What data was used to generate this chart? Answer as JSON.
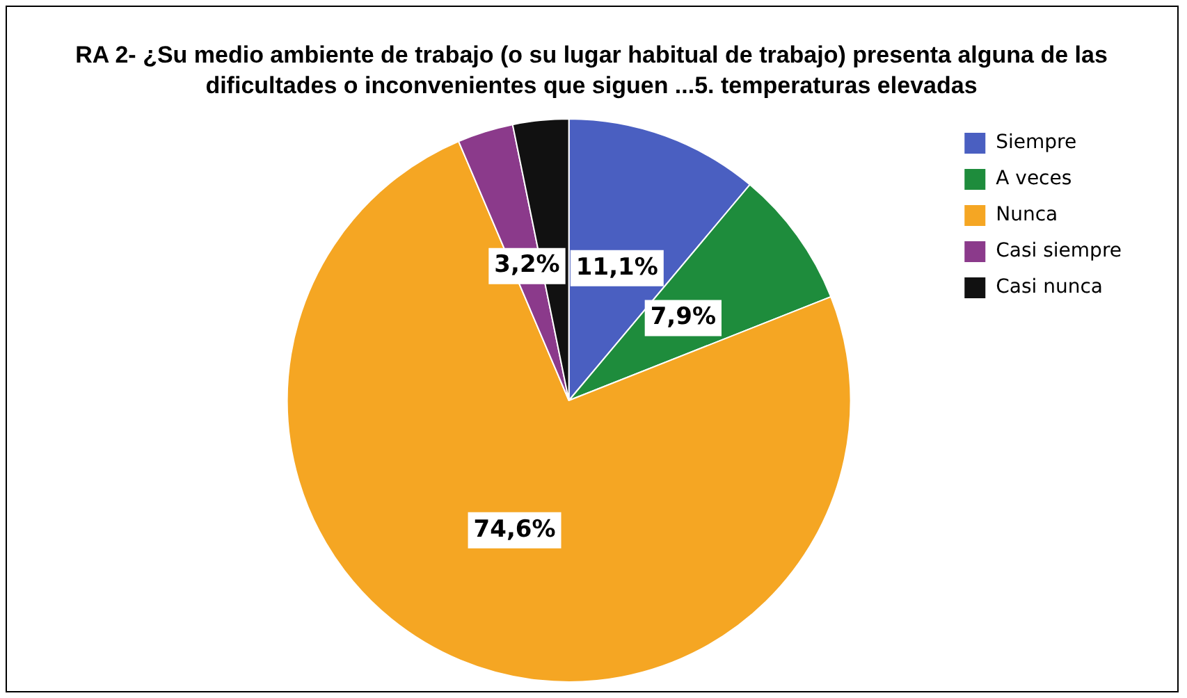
{
  "chart_data": {
    "type": "pie",
    "title": "RA 2- ¿Su medio ambiente de trabajo (o su lugar habitual de trabajo) presenta alguna de las dificultades o inconvenientes que siguen ...5. temperaturas elevadas",
    "categories": [
      "Siempre",
      "A veces",
      "Nunca",
      "Casi siempre",
      "Casi nunca"
    ],
    "values": [
      11.1,
      7.9,
      74.6,
      3.2,
      3.2
    ],
    "colors": [
      "#4a5fc1",
      "#1e8c3c",
      "#f5a623",
      "#8b3a8b",
      "#111111"
    ],
    "value_labels": [
      "11,1%",
      "7,9%",
      "74,6%",
      "3,2%",
      null
    ],
    "legend": "top right"
  }
}
